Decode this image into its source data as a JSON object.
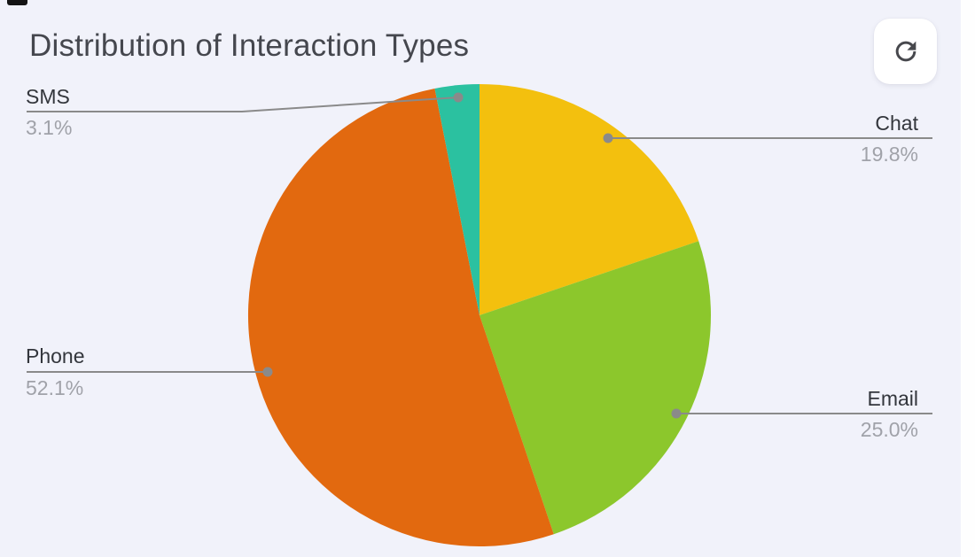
{
  "header": {
    "title": "Distribution of Interaction Types"
  },
  "toolbar": {
    "refresh_icon": "refresh-icon"
  },
  "colors": {
    "background": "#f1f2fa",
    "title_text": "#45474e",
    "label_text": "#33363c",
    "percent_text": "#a0a2a9",
    "leader_line": "#8a8a8a",
    "button_background": "#ffffff"
  },
  "chart_data": {
    "type": "pie",
    "title": "Distribution of Interaction Types",
    "labels": [
      "Chat",
      "Email",
      "Phone",
      "SMS"
    ],
    "values": [
      19.8,
      25.0,
      52.1,
      3.1
    ],
    "percent_labels": [
      "19.8%",
      "25.0%",
      "52.1%",
      "3.1%"
    ],
    "colors": [
      "#f3c00e",
      "#8cc72c",
      "#e2690f",
      "#2bc1a0"
    ],
    "start_angle": "12 o'clock",
    "direction": "clockwise",
    "legend_position": "none",
    "annotation_style": "leader-lines-with-dots"
  }
}
